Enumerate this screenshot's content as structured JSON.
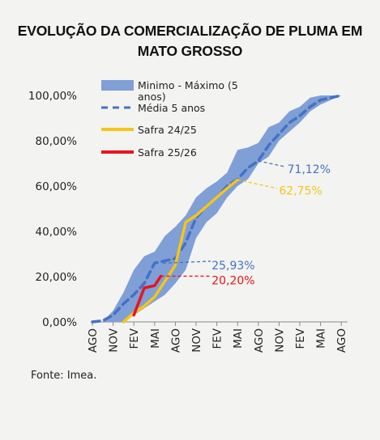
{
  "chart_data": {
    "type": "area",
    "title_lines": [
      "EVOLUÇÃO DA COMERCIALIZAÇÃO DE PLUMA EM",
      "MATO GROSSO"
    ],
    "source": "Fonte: Imea.",
    "categories": [
      "AGO",
      "NOV",
      "FEV",
      "MAI",
      "AGO",
      "NOV",
      "FEV",
      "MAI",
      "AGO",
      "NOV",
      "FEV",
      "MAI",
      "AGO"
    ],
    "y_ticks": [
      "0,00%",
      "20,00%",
      "40,00%",
      "60,00%",
      "80,00%",
      "100,00%"
    ],
    "ylim": [
      0,
      100
    ],
    "legend": {
      "band": "Minimo - Máximo (5 anos)",
      "band_line1": "Minimo - Máximo (5",
      "band_line2": "anos)",
      "mean": "Média 5 anos",
      "s2425": "Safra 24/25",
      "s2526": "Safra 25/26"
    },
    "colors": {
      "band": "#7f9fd6",
      "mean": "#4472c4",
      "s2425": "#f5c518",
      "s2526": "#e8141c"
    },
    "series": [
      {
        "name": "Minimo - Máximo (5 anos)",
        "type": "band",
        "x": [
          0,
          0.5,
          1,
          1.5,
          2,
          2.5,
          3,
          3.5,
          4,
          4.5,
          5,
          5.5,
          6,
          6.5,
          7,
          7.5,
          8,
          8.5,
          9,
          9.5,
          10,
          10.5,
          11,
          11.5,
          12
        ],
        "low": [
          0,
          0,
          0,
          0,
          3,
          6,
          9,
          12,
          17,
          23,
          37,
          44,
          48,
          55,
          60,
          63,
          70,
          73,
          80,
          84,
          88,
          93,
          96,
          98,
          100
        ],
        "high": [
          0,
          0,
          5,
          13,
          23,
          29,
          31,
          38,
          42,
          47,
          55,
          59,
          62,
          66,
          76,
          77,
          79,
          86,
          88,
          93,
          95,
          99,
          100,
          100,
          100
        ]
      },
      {
        "name": "Média 5 anos",
        "type": "dashed",
        "x": [
          0,
          0.5,
          1,
          1.5,
          2,
          2.5,
          3,
          3.5,
          4,
          4.5,
          5,
          5.5,
          6,
          6.5,
          7,
          7.5,
          8,
          8.5,
          9,
          9.5,
          10,
          10.5,
          11,
          11.5,
          12
        ],
        "values": [
          0,
          0.5,
          3,
          8,
          12,
          17,
          26,
          27,
          28,
          35,
          46,
          51,
          55,
          60,
          63,
          68,
          71.12,
          78,
          83,
          88,
          91,
          95,
          98,
          99,
          100
        ]
      },
      {
        "name": "Safra 24/25",
        "type": "line",
        "x": [
          1.5,
          2,
          2.5,
          3,
          3.5,
          4,
          4.5,
          5,
          5.5,
          6,
          6.5,
          7
        ],
        "values": [
          0,
          4,
          7,
          11,
          18,
          25,
          44,
          47,
          51,
          55,
          59,
          62.75
        ]
      },
      {
        "name": "Safra 25/26",
        "type": "line",
        "x": [
          2,
          2.5,
          3,
          3.3
        ],
        "values": [
          3,
          15,
          16,
          20.2
        ]
      }
    ],
    "annotations": [
      {
        "label": "71,12%",
        "x": 8,
        "y": 71.12,
        "color": "#4472c4"
      },
      {
        "label": "62,75%",
        "x": 7,
        "y": 62.75,
        "color": "#f5c518"
      },
      {
        "label": "25,93%",
        "x": 3.4,
        "y": 25.93,
        "color": "#4472c4"
      },
      {
        "label": "20,20%",
        "x": 3.3,
        "y": 20.2,
        "color": "#e8141c"
      }
    ]
  }
}
